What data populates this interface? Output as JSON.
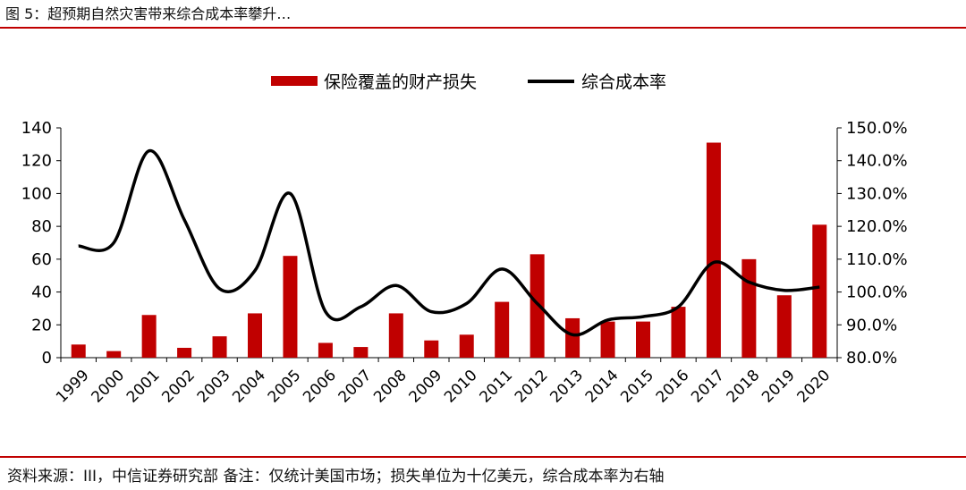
{
  "figure_title": "图 5：超预期自然灾害带来综合成本率攀升…",
  "footnote": "资料来源：III，中信证券研究部 备注：仅统计美国市场；损失单位为十亿美元，综合成本率为右轴",
  "colors": {
    "bar": "#c00000",
    "line": "#000000",
    "rule": "#c00000"
  },
  "chart_data": {
    "type": "bar+line",
    "title": "",
    "xlabel": "",
    "ylabel": "",
    "y2label": "",
    "categories": [
      "1999",
      "2000",
      "2001",
      "2002",
      "2003",
      "2004",
      "2005",
      "2006",
      "2007",
      "2008",
      "2009",
      "2010",
      "2011",
      "2012",
      "2013",
      "2014",
      "2015",
      "2016",
      "2017",
      "2018",
      "2019",
      "2020"
    ],
    "legend_position": "top-center",
    "grid": false,
    "series": [
      {
        "name": "保险覆盖的财产损失",
        "type": "bar",
        "axis": "left",
        "values": [
          8,
          4,
          26,
          6,
          13,
          27,
          62,
          9,
          6.5,
          27,
          10.5,
          14,
          34,
          63,
          24,
          22,
          22,
          31,
          131,
          60,
          38,
          81
        ]
      },
      {
        "name": "综合成本率",
        "type": "line",
        "axis": "right",
        "values": [
          114,
          115,
          143,
          122,
          101,
          106.5,
          130,
          94,
          95.5,
          102,
          94,
          96.5,
          107,
          96.5,
          87,
          91.5,
          92.5,
          95.5,
          109,
          103,
          100.5,
          101.5
        ]
      }
    ],
    "y_left": {
      "min": 0,
      "max": 140,
      "ticks": [
        "0",
        "20",
        "40",
        "60",
        "80",
        "100",
        "120",
        "140"
      ]
    },
    "y_right": {
      "min": 80,
      "max": 150,
      "ticks": [
        "80.0%",
        "90.0%",
        "100.0%",
        "110.0%",
        "120.0%",
        "130.0%",
        "140.0%",
        "150.0%"
      ]
    }
  }
}
